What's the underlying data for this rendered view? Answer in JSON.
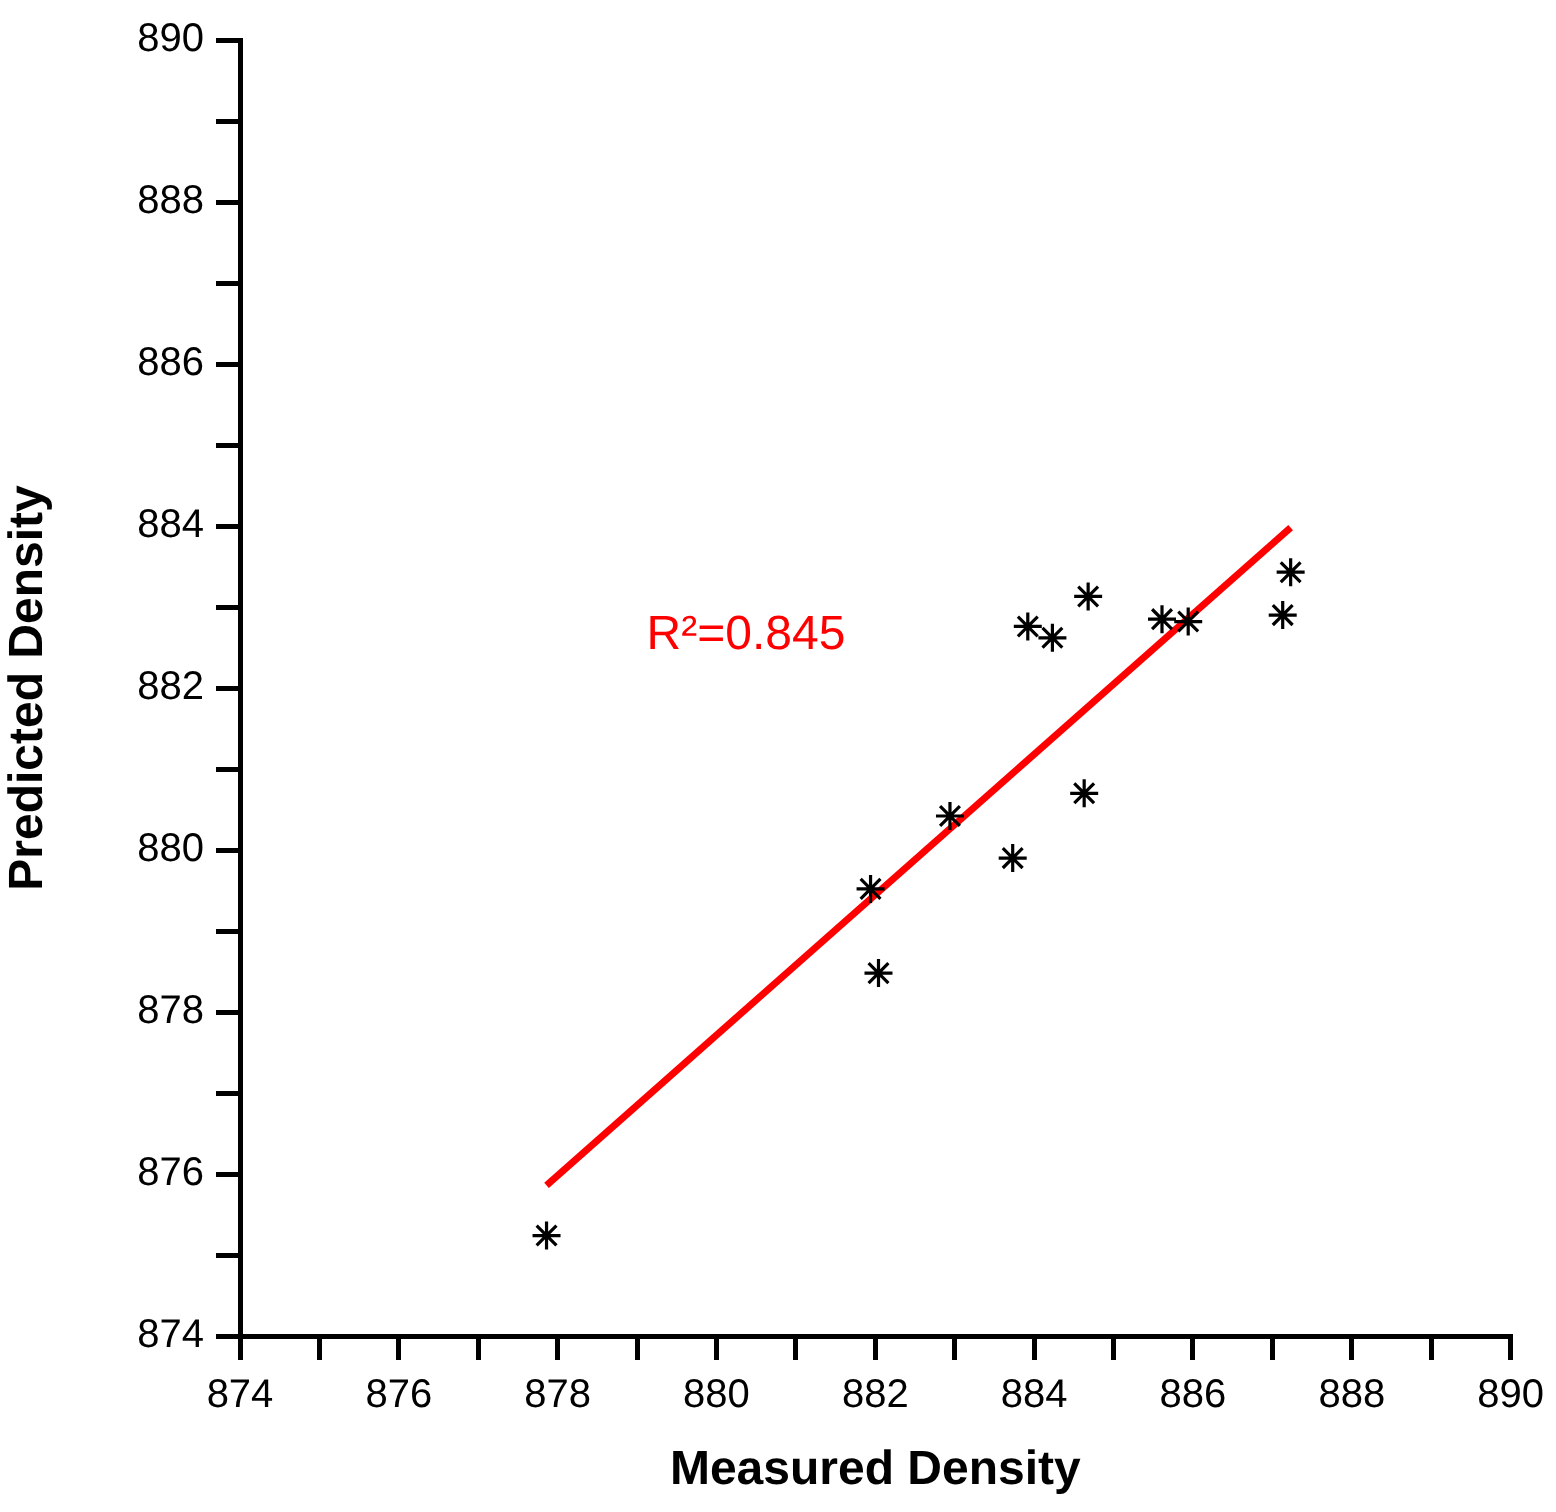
{
  "chart_data": {
    "type": "scatter",
    "xlabel": "Measured Density",
    "ylabel": "Predicted Density",
    "annotations": [
      "R²=0.845"
    ],
    "marker": "cross",
    "legend": false,
    "grid": false,
    "xlim": [
      874,
      890
    ],
    "ylim": [
      874,
      890
    ],
    "xticks": [
      874,
      {
        "value": 875,
        "label": null
      },
      876,
      {
        "value": 877,
        "label": null
      },
      878,
      {
        "value": 879,
        "label": null
      },
      880,
      {
        "value": 881,
        "label": null
      },
      882,
      {
        "value": 883,
        "label": null
      },
      884,
      {
        "value": 885,
        "label": null
      },
      886,
      {
        "value": 887,
        "label": null
      },
      888,
      {
        "value": 889,
        "label": null
      },
      890
    ],
    "yticks": [
      874,
      {
        "value": 875,
        "label": null
      },
      876,
      {
        "value": 877,
        "label": null
      },
      878,
      {
        "value": 879,
        "label": null
      },
      880,
      {
        "value": 881,
        "label": null
      },
      882,
      {
        "value": 883,
        "label": null
      },
      884,
      {
        "value": 885,
        "label": null
      },
      886,
      {
        "value": 887,
        "label": null
      },
      888,
      {
        "value": 889,
        "label": null
      },
      890
    ],
    "series": [
      {
        "type": "scatter",
        "color": "#000000",
        "x": [
          877.86,
          881.94,
          882.04,
          882.94,
          883.73,
          883.92,
          884.23,
          884.68,
          884.63,
          885.61,
          885.94,
          887.13,
          887.23
        ],
        "values": [
          875.24,
          879.52,
          878.48,
          880.42,
          879.9,
          882.76,
          882.62,
          883.13,
          880.7,
          882.85,
          882.82,
          882.9,
          883.43
        ]
      },
      {
        "type": "line",
        "color": "#ff0000",
        "marker": "none",
        "x": [
          877.86,
          887.23
        ],
        "values": [
          875.86,
          883.98
        ]
      }
    ]
  }
}
